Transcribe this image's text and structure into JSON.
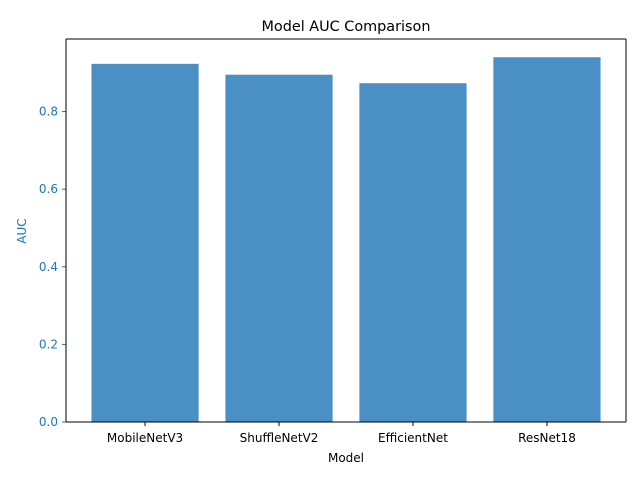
{
  "chart_data": {
    "type": "bar",
    "title": "Model AUC Comparison",
    "xlabel": "Model",
    "ylabel": "AUC",
    "categories": [
      "MobileNetV3",
      "ShuffleNetV2",
      "EfficientNet",
      "ResNet18"
    ],
    "values": [
      0.923,
      0.895,
      0.873,
      0.94
    ],
    "ylim": [
      0,
      0.987
    ],
    "yticks": [
      0.0,
      0.2,
      0.4,
      0.6,
      0.8
    ],
    "ytick_labels": [
      "0.0",
      "0.2",
      "0.4",
      "0.6",
      "0.8"
    ],
    "grid": false,
    "colors": {
      "bar": "#4a90c4",
      "y_axis_accent": "#1f77b4",
      "text": "#000000",
      "axes": "#000000"
    }
  }
}
